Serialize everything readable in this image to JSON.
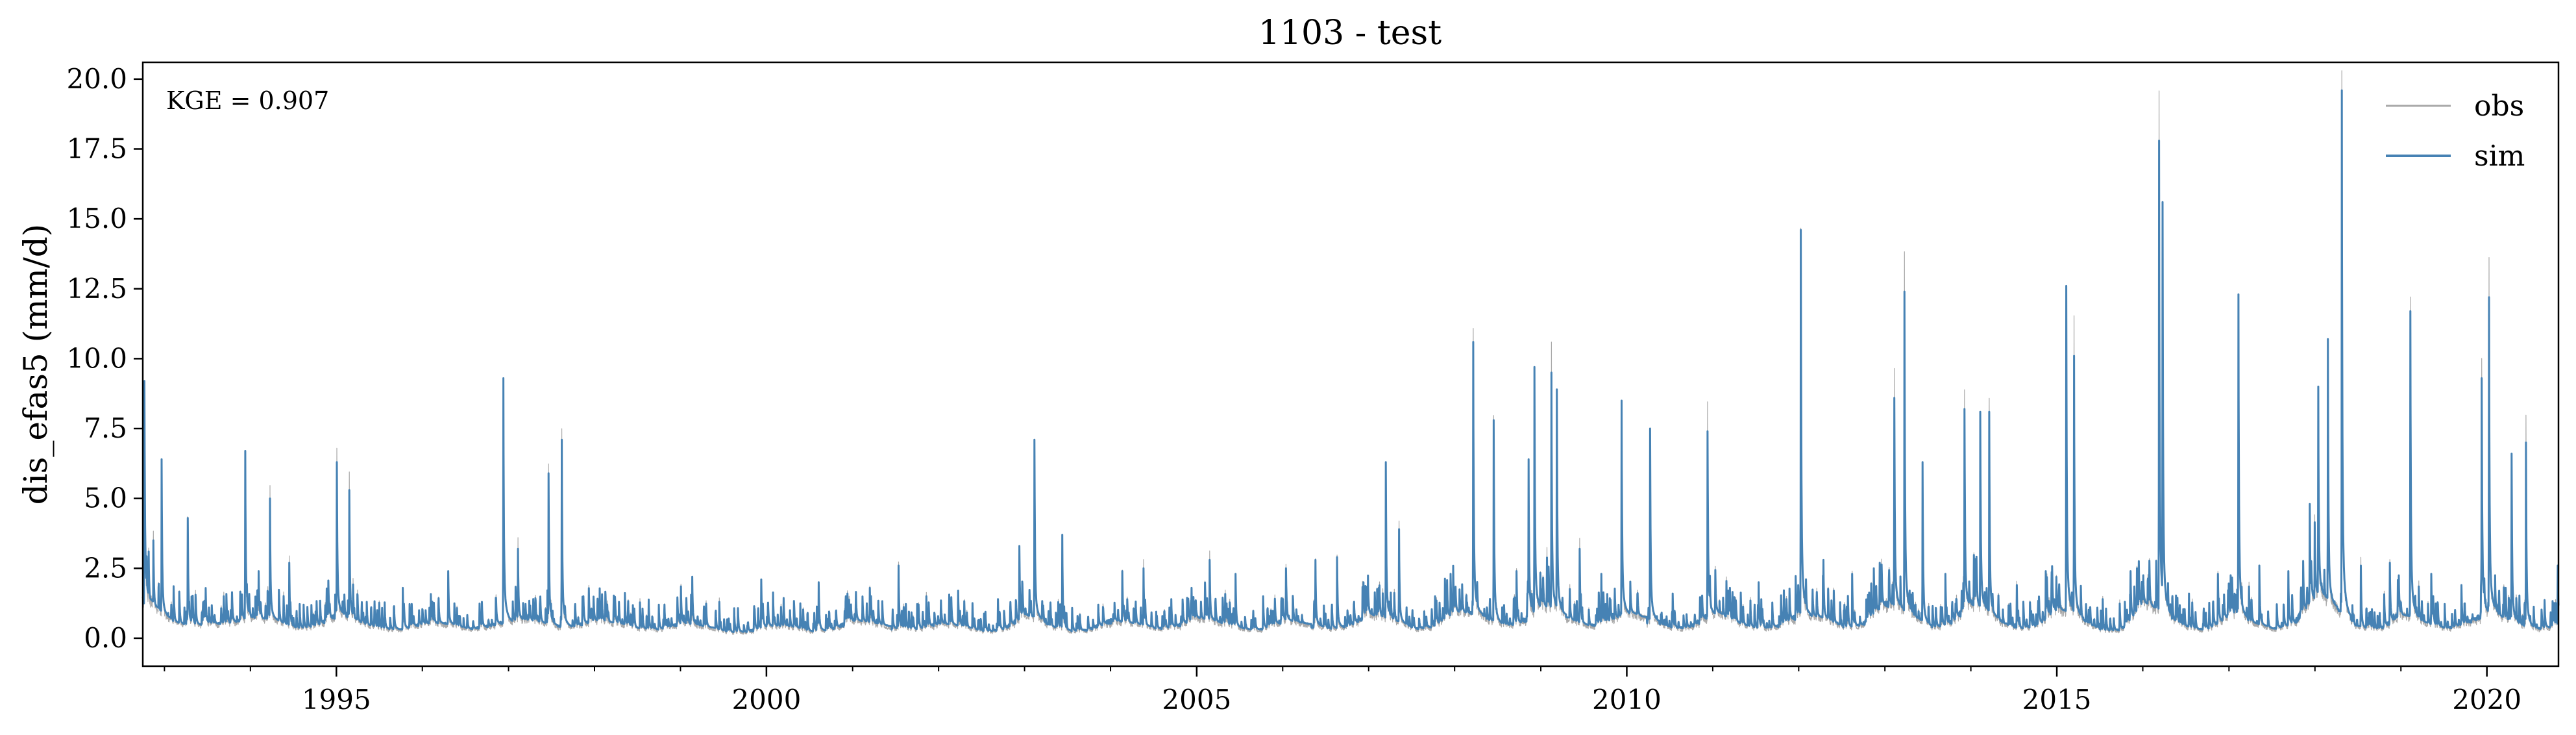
{
  "chart_data": {
    "type": "line",
    "title": "1103 - test",
    "ylabel": "dis_efas5 (mm/d)",
    "xlabel": "",
    "annotation": "KGE = 0.907",
    "x_range": [
      "1992-10-01",
      "2020-10-31"
    ],
    "xticks": [
      {
        "date": "1995-01-01",
        "label": "1995"
      },
      {
        "date": "2000-01-01",
        "label": "2000"
      },
      {
        "date": "2005-01-01",
        "label": "2005"
      },
      {
        "date": "2010-01-01",
        "label": "2010"
      },
      {
        "date": "2015-01-01",
        "label": "2015"
      },
      {
        "date": "2020-01-01",
        "label": "2020"
      }
    ],
    "ylim": [
      -1.0,
      20.6
    ],
    "yticks": [
      "0.0",
      "2.5",
      "5.0",
      "7.5",
      "10.0",
      "12.5",
      "15.0",
      "17.5",
      "20.0"
    ],
    "grid": false,
    "legend_position": "top-right",
    "series": [
      {
        "name": "obs",
        "color": "#a9a9a9",
        "stroke_width": 1.2
      },
      {
        "name": "sim",
        "color": "#4682b4",
        "stroke_width": 3
      }
    ],
    "baseflow_sim": [
      [
        "1992-10-01",
        1.3
      ],
      [
        "1993-01-01",
        0.6
      ],
      [
        "1993-04-01",
        0.4
      ],
      [
        "1993-07-01",
        0.5
      ],
      [
        "1993-10-01",
        0.5
      ],
      [
        "1994-01-01",
        0.7
      ],
      [
        "1994-04-01",
        0.6
      ],
      [
        "1994-07-01",
        0.3
      ],
      [
        "1994-10-01",
        0.4
      ],
      [
        "1995-01-01",
        0.8
      ],
      [
        "1995-04-01",
        0.5
      ],
      [
        "1995-07-01",
        0.3
      ],
      [
        "1995-10-01",
        0.3
      ],
      [
        "1996-01-01",
        0.5
      ],
      [
        "1996-04-01",
        0.5
      ],
      [
        "1996-07-01",
        0.3
      ],
      [
        "1996-10-01",
        0.4
      ],
      [
        "1997-01-01",
        0.6
      ],
      [
        "1997-04-01",
        0.6
      ],
      [
        "1997-07-01",
        0.4
      ],
      [
        "1997-10-01",
        0.4
      ],
      [
        "1998-01-01",
        0.6
      ],
      [
        "1998-04-01",
        0.5
      ],
      [
        "1998-07-01",
        0.3
      ],
      [
        "1998-10-01",
        0.3
      ],
      [
        "1999-01-01",
        0.5
      ],
      [
        "1999-04-01",
        0.4
      ],
      [
        "1999-07-01",
        0.2
      ],
      [
        "1999-10-01",
        0.2
      ],
      [
        "2000-01-01",
        0.4
      ],
      [
        "2000-04-01",
        0.4
      ],
      [
        "2000-07-01",
        0.2
      ],
      [
        "2000-10-01",
        0.3
      ],
      [
        "2001-01-01",
        0.6
      ],
      [
        "2001-04-01",
        0.5
      ],
      [
        "2001-07-01",
        0.3
      ],
      [
        "2001-10-01",
        0.3
      ],
      [
        "2002-01-01",
        0.5
      ],
      [
        "2002-04-01",
        0.4
      ],
      [
        "2002-07-01",
        0.2
      ],
      [
        "2002-10-01",
        0.3
      ],
      [
        "2003-01-01",
        0.8
      ],
      [
        "2003-04-01",
        0.4
      ],
      [
        "2003-07-01",
        0.2
      ],
      [
        "2003-10-01",
        0.3
      ],
      [
        "2004-01-01",
        0.6
      ],
      [
        "2004-04-01",
        0.5
      ],
      [
        "2004-07-01",
        0.3
      ],
      [
        "2004-10-01",
        0.4
      ],
      [
        "2005-01-01",
        0.7
      ],
      [
        "2005-04-01",
        0.5
      ],
      [
        "2005-07-01",
        0.3
      ],
      [
        "2005-10-01",
        0.3
      ],
      [
        "2006-01-01",
        0.6
      ],
      [
        "2006-04-01",
        0.5
      ],
      [
        "2006-07-01",
        0.3
      ],
      [
        "2006-10-01",
        0.4
      ],
      [
        "2007-01-01",
        0.8
      ],
      [
        "2007-04-01",
        0.6
      ],
      [
        "2007-07-01",
        0.3
      ],
      [
        "2007-10-01",
        0.4
      ],
      [
        "2008-01-01",
        0.9
      ],
      [
        "2008-04-01",
        0.8
      ],
      [
        "2008-07-01",
        0.4
      ],
      [
        "2008-10-01",
        0.5
      ],
      [
        "2009-01-01",
        1.1
      ],
      [
        "2009-04-01",
        0.7
      ],
      [
        "2009-07-01",
        0.4
      ],
      [
        "2009-10-01",
        0.5
      ],
      [
        "2010-01-01",
        0.9
      ],
      [
        "2010-04-01",
        0.6
      ],
      [
        "2010-07-01",
        0.3
      ],
      [
        "2010-10-01",
        0.4
      ],
      [
        "2011-01-01",
        0.9
      ],
      [
        "2011-04-01",
        0.5
      ],
      [
        "2011-07-01",
        0.3
      ],
      [
        "2011-10-01",
        0.4
      ],
      [
        "2012-01-01",
        0.8
      ],
      [
        "2012-04-01",
        0.7
      ],
      [
        "2012-07-01",
        0.3
      ],
      [
        "2012-10-01",
        0.5
      ],
      [
        "2013-01-01",
        1.2
      ],
      [
        "2013-04-01",
        0.8
      ],
      [
        "2013-07-01",
        0.3
      ],
      [
        "2013-10-01",
        0.5
      ],
      [
        "2014-01-01",
        1.2
      ],
      [
        "2014-04-01",
        0.6
      ],
      [
        "2014-07-01",
        0.3
      ],
      [
        "2014-10-01",
        0.4
      ],
      [
        "2015-01-01",
        1.0
      ],
      [
        "2015-04-01",
        0.6
      ],
      [
        "2015-07-01",
        0.2
      ],
      [
        "2015-10-01",
        0.3
      ],
      [
        "2016-01-01",
        1.2
      ],
      [
        "2016-04-01",
        0.7
      ],
      [
        "2016-07-01",
        0.3
      ],
      [
        "2016-10-01",
        0.3
      ],
      [
        "2017-01-01",
        0.8
      ],
      [
        "2017-04-01",
        0.5
      ],
      [
        "2017-07-01",
        0.3
      ],
      [
        "2017-10-01",
        0.5
      ],
      [
        "2018-01-01",
        1.5
      ],
      [
        "2018-04-01",
        0.8
      ],
      [
        "2018-07-01",
        0.3
      ],
      [
        "2018-10-01",
        0.3
      ],
      [
        "2019-01-01",
        0.8
      ],
      [
        "2019-04-01",
        0.5
      ],
      [
        "2019-07-01",
        0.3
      ],
      [
        "2019-10-01",
        0.5
      ],
      [
        "2020-01-01",
        0.9
      ],
      [
        "2020-04-01",
        0.5
      ],
      [
        "2020-07-01",
        0.3
      ],
      [
        "2020-10-31",
        0.4
      ]
    ],
    "peaks_sim": [
      [
        "1992-10-08",
        9.2
      ],
      [
        "1992-11-15",
        3.5
      ],
      [
        "1992-12-20",
        6.4
      ],
      [
        "1993-04-10",
        4.3
      ],
      [
        "1993-06-15",
        1.3
      ],
      [
        "1993-09-10",
        1.5
      ],
      [
        "1993-12-10",
        6.7
      ],
      [
        "1994-02-05",
        2.4
      ],
      [
        "1994-03-25",
        5.0
      ],
      [
        "1994-06-15",
        2.7
      ],
      [
        "1994-08-15",
        1.2
      ],
      [
        "1995-01-03",
        6.3
      ],
      [
        "1995-02-25",
        5.3
      ],
      [
        "1995-05-10",
        1.3
      ],
      [
        "1995-10-10",
        1.8
      ],
      [
        "1996-01-15",
        1.0
      ],
      [
        "1996-04-20",
        2.4
      ],
      [
        "1996-09-10",
        1.3
      ],
      [
        "1996-12-10",
        9.3
      ],
      [
        "1997-02-10",
        3.2
      ],
      [
        "1997-06-20",
        5.9
      ],
      [
        "1997-08-15",
        7.1
      ],
      [
        "1997-11-15",
        1.5
      ],
      [
        "1998-04-15",
        1.3
      ],
      [
        "1998-10-01",
        1.2
      ],
      [
        "1999-02-20",
        2.2
      ],
      [
        "1999-06-15",
        1.3
      ],
      [
        "1999-12-10",
        2.1
      ],
      [
        "2000-04-10",
        1.0
      ],
      [
        "2000-08-10",
        2.0
      ],
      [
        "2000-12-10",
        1.6
      ],
      [
        "2001-03-15",
        1.8
      ],
      [
        "2001-07-15",
        2.6
      ],
      [
        "2001-11-10",
        1.5
      ],
      [
        "2002-03-25",
        1.7
      ],
      [
        "2002-09-10",
        1.4
      ],
      [
        "2002-12-10",
        3.3
      ],
      [
        "2003-02-12",
        7.1
      ],
      [
        "2003-06-10",
        3.7
      ],
      [
        "2003-11-10",
        1.2
      ],
      [
        "2004-02-20",
        2.4
      ],
      [
        "2004-05-20",
        2.5
      ],
      [
        "2004-09-15",
        1.4
      ],
      [
        "2004-12-10",
        1.8
      ],
      [
        "2005-02-25",
        2.8
      ],
      [
        "2005-06-15",
        2.3
      ],
      [
        "2005-10-10",
        1.5
      ],
      [
        "2006-01-15",
        2.5
      ],
      [
        "2006-05-20",
        2.8
      ],
      [
        "2006-08-20",
        2.9
      ],
      [
        "2006-12-10",
        2.0
      ],
      [
        "2007-03-15",
        6.3
      ],
      [
        "2007-05-10",
        3.9
      ],
      [
        "2007-10-10",
        1.5
      ],
      [
        "2007-12-15",
        2.3
      ],
      [
        "2008-03-20",
        10.6
      ],
      [
        "2008-06-15",
        7.8
      ],
      [
        "2008-09-20",
        2.4
      ],
      [
        "2008-11-10",
        6.4
      ],
      [
        "2008-12-05",
        9.7
      ],
      [
        "2009-02-15",
        9.5
      ],
      [
        "2009-03-10",
        8.9
      ],
      [
        "2009-06-15",
        3.2
      ],
      [
        "2009-09-15",
        2.3
      ],
      [
        "2009-12-10",
        8.5
      ],
      [
        "2010-04-10",
        7.5
      ],
      [
        "2010-07-15",
        1.6
      ],
      [
        "2010-12-10",
        7.4
      ],
      [
        "2011-03-15",
        1.8
      ],
      [
        "2011-07-15",
        2.0
      ],
      [
        "2011-11-10",
        1.4
      ],
      [
        "2012-01-10",
        14.6
      ],
      [
        "2012-04-15",
        2.8
      ],
      [
        "2012-08-15",
        2.3
      ],
      [
        "2012-11-15",
        2.5
      ],
      [
        "2013-02-10",
        8.6
      ],
      [
        "2013-03-25",
        12.4
      ],
      [
        "2013-06-10",
        6.3
      ],
      [
        "2013-09-15",
        2.3
      ],
      [
        "2013-12-05",
        8.2
      ],
      [
        "2014-02-10",
        8.1
      ],
      [
        "2014-03-20",
        8.1
      ],
      [
        "2014-07-15",
        1.9
      ],
      [
        "2014-11-15",
        2.4
      ],
      [
        "2015-02-10",
        12.6
      ],
      [
        "2015-03-15",
        10.1
      ],
      [
        "2015-07-15",
        1.4
      ],
      [
        "2015-11-10",
        2.4
      ],
      [
        "2016-03-10",
        17.8
      ],
      [
        "2016-03-25",
        15.6
      ],
      [
        "2016-07-15",
        1.6
      ],
      [
        "2016-11-15",
        2.3
      ],
      [
        "2017-02-10",
        12.3
      ],
      [
        "2017-05-10",
        2.6
      ],
      [
        "2017-09-10",
        2.4
      ],
      [
        "2017-12-10",
        4.8
      ],
      [
        "2018-01-15",
        9.0
      ],
      [
        "2018-02-25",
        10.7
      ],
      [
        "2018-04-25",
        19.6
      ],
      [
        "2018-07-15",
        2.6
      ],
      [
        "2018-11-15",
        2.7
      ],
      [
        "2019-02-10",
        11.7
      ],
      [
        "2019-05-10",
        2.3
      ],
      [
        "2019-09-15",
        1.9
      ],
      [
        "2019-12-10",
        9.3
      ],
      [
        "2020-01-10",
        12.2
      ],
      [
        "2020-04-15",
        6.6
      ],
      [
        "2020-06-15",
        7.0
      ],
      [
        "2020-10-28",
        2.6
      ]
    ]
  }
}
